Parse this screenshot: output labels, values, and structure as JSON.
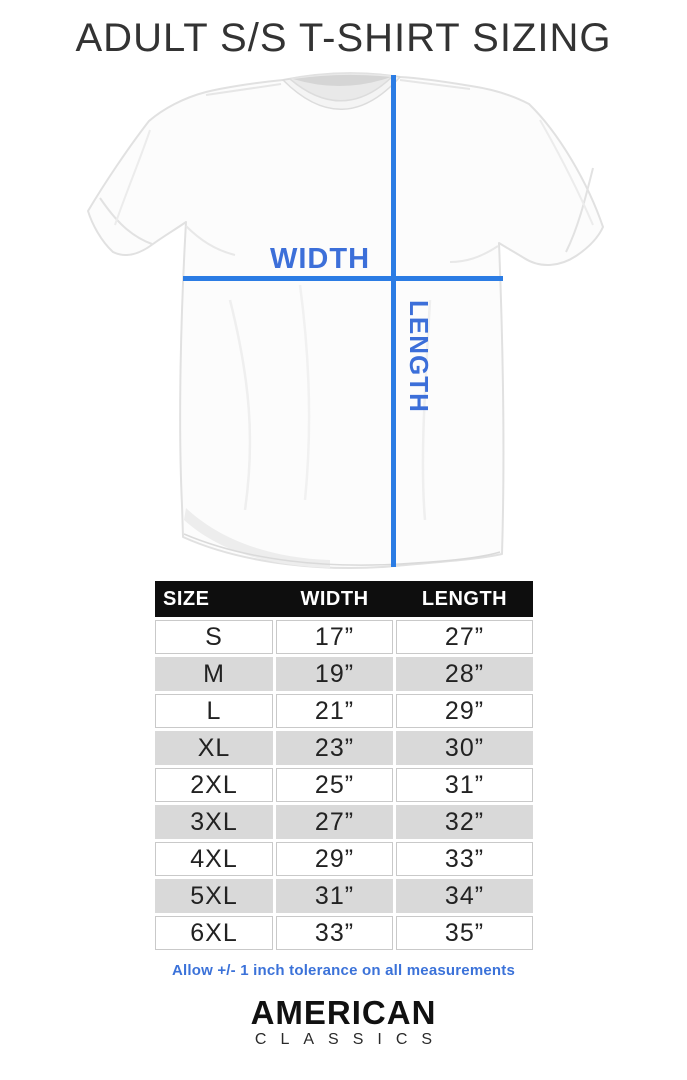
{
  "title": "ADULT S/S T-SHIRT SIZING",
  "diagram": {
    "width_label": "WIDTH",
    "length_label": "LENGTH"
  },
  "table": {
    "headers": [
      "SIZE",
      "WIDTH",
      "LENGTH"
    ],
    "rows": [
      {
        "size": "S",
        "width": "17”",
        "length": "27”"
      },
      {
        "size": "M",
        "width": "19”",
        "length": "28”"
      },
      {
        "size": "L",
        "width": "21”",
        "length": "29”"
      },
      {
        "size": "XL",
        "width": "23”",
        "length": "30”"
      },
      {
        "size": "2XL",
        "width": "25”",
        "length": "31”"
      },
      {
        "size": "3XL",
        "width": "27”",
        "length": "32”"
      },
      {
        "size": "4XL",
        "width": "29”",
        "length": "33”"
      },
      {
        "size": "5XL",
        "width": "31”",
        "length": "34”"
      },
      {
        "size": "6XL",
        "width": "33”",
        "length": "35”"
      }
    ]
  },
  "note": "Allow +/- 1 inch tolerance on all measurements",
  "logo": {
    "line1": "AMERICAN",
    "line2": "CLASSICS"
  },
  "colors": {
    "measure_line": "#2b7ce4",
    "measure_label": "#3c6fd9",
    "note_text": "#3b72d9",
    "header_bg": "#0e0e0e",
    "header_text": "#ffffff",
    "row_alt_bg": "#d9d9d9",
    "row_border": "#c9c9c9",
    "cell_text": "#222222",
    "title_text": "#333333",
    "logo_text": "#111111"
  }
}
